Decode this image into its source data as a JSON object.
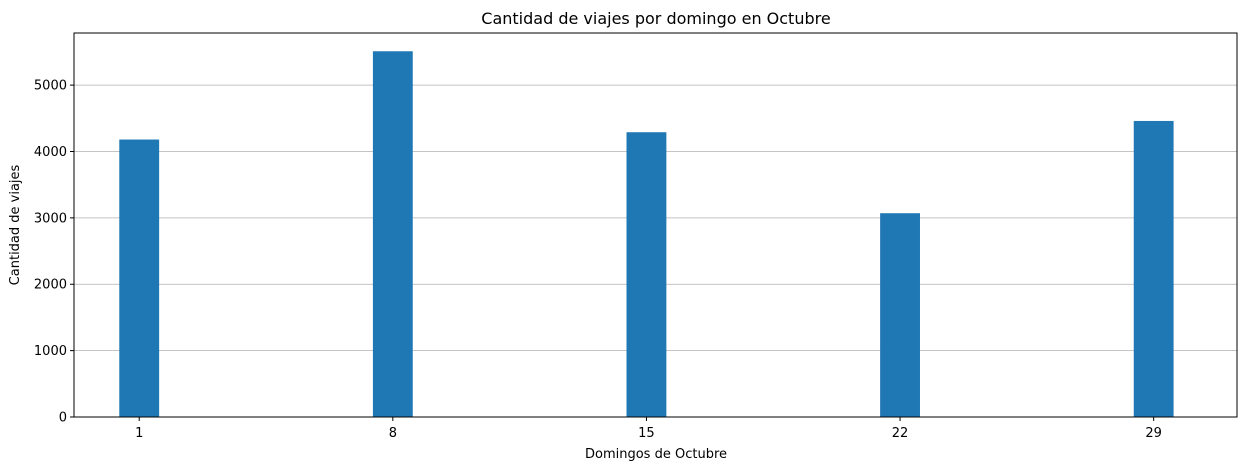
{
  "chart_data": {
    "type": "bar",
    "title": "Cantidad de viajes por domingo en Octubre",
    "xlabel": "Domingos de Octubre",
    "ylabel": "Cantidad de viajes",
    "categories": [
      1,
      8,
      15,
      22,
      29
    ],
    "x_ticks": [
      "1",
      "8",
      "15",
      "22",
      "29"
    ],
    "values": [
      4180,
      5510,
      4290,
      3070,
      4460
    ],
    "xlim": [
      -0.8,
      31.3
    ],
    "ylim": [
      0,
      5785
    ],
    "y_ticks": [
      0,
      1000,
      2000,
      3000,
      4000,
      5000
    ],
    "bar_width_units": 1.1,
    "grid": "y",
    "bar_color": "#1f77b4"
  }
}
